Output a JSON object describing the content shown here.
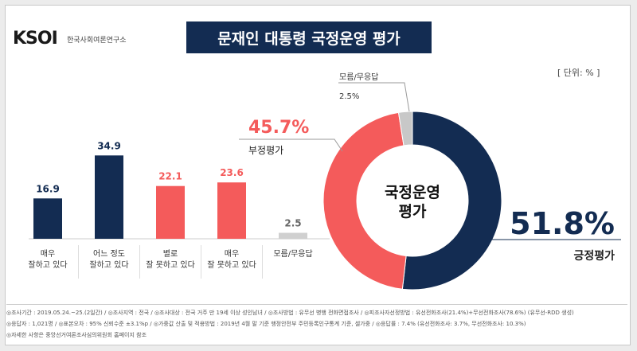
{
  "header": {
    "logo": "KSOI",
    "logo_sub": "한국사회여론연구소",
    "title": "문재인 대통령 국정운영 평가",
    "unit": "[ 단위: % ]"
  },
  "colors": {
    "navy": "#132c52",
    "red": "#f45b5b",
    "gray": "#bdbdbd"
  },
  "chart_data": [
    {
      "type": "bar",
      "categories": [
        [
          "매우",
          "잘하고 있다"
        ],
        [
          "어느 정도",
          "잘하고 있다"
        ],
        [
          "별로",
          "잘 못하고 있다"
        ],
        [
          "매우",
          "잘 못하고 있다"
        ],
        [
          "모름/무응답"
        ]
      ],
      "values": [
        16.9,
        34.9,
        22.1,
        23.6,
        2.5
      ],
      "value_labels": [
        "16.9",
        "34.9",
        "22.1",
        "23.6",
        "2.5"
      ],
      "bar_colors": [
        "#132c52",
        "#132c52",
        "#f45b5b",
        "#f45b5b",
        "#c8c8c8"
      ],
      "label_colors": [
        "#132c52",
        "#132c52",
        "#f45b5b",
        "#f45b5b",
        "#666666"
      ]
    },
    {
      "type": "pie",
      "center_label": [
        "국정운영",
        "평가"
      ],
      "slices": [
        {
          "name": "긍정평가",
          "value": 51.8,
          "label": "51.8%",
          "color": "#132c52"
        },
        {
          "name": "부정평가",
          "value": 45.7,
          "label": "45.7%",
          "color": "#f45b5b"
        },
        {
          "name": "모름/무응답",
          "value": 2.5,
          "label": "2.5%",
          "color": "#c8c8c8"
        }
      ]
    }
  ],
  "footer": {
    "line1": "◎조사기간 : 2019.05.24.~25.(2일간) / ◎조사지역 : 전국 / ◎조사대상 : 전국 거주 만 19세 이상 성인남녀 / ◎조사방법 : 유무선 병행 전화면접조사 / ◎피조사자선정방법 : 유선전화조사(21.4%)+무선전화조사(78.6%) (유무선-RDD 생성)",
    "line2": "◎응답자 : 1,021명 / ◎표본오차 : 95% 신뢰수준 ±3.1%p / ◎가중값 산출 및 적용방법 : 2019년 4월 말 기준 행정안전부 주민등록인구통계 기준, 셀가중 / ◎응답률 : 7.4% (유선전화조사: 3.7%, 무선전화조사: 10.3%)",
    "line3": "◎자세한 사항은 중앙선거여론조사심의위원회 홈페이지 참조"
  }
}
